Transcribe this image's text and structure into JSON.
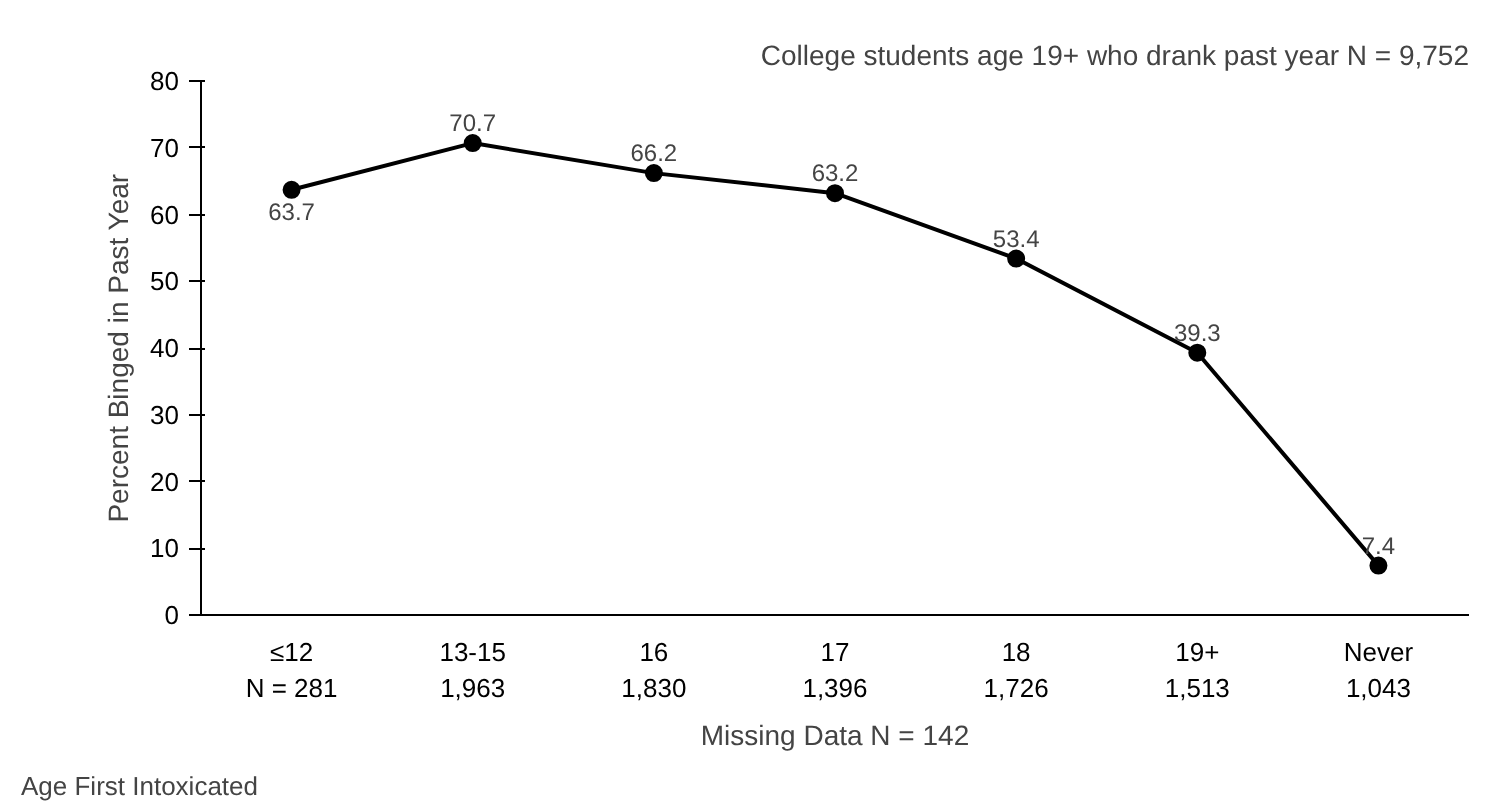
{
  "chart_data": {
    "type": "line",
    "ylabel": "Percent Binged in Past Year",
    "xlabel": "Missing Data N = 142",
    "categories": [
      "≤12\nN = 281",
      "13-15\n1,963",
      "16\n1,830",
      "17\n1,396",
      "18\n1,726",
      "19+\n1,513",
      "Never\n1,043"
    ],
    "values": [
      63.7,
      70.7,
      66.2,
      63.2,
      53.4,
      39.3,
      7.4
    ],
    "color": "#000000",
    "marker": "circle",
    "line_style": "solid",
    "ylim": [
      0,
      80
    ],
    "yticks": [
      0,
      10,
      20,
      30,
      40,
      50,
      60,
      70,
      80
    ],
    "grid": false,
    "data_labels": true,
    "annotations": [
      "College students age 19+ who drank past year N = 9,752",
      "Age First\nIntoxicated"
    ]
  }
}
